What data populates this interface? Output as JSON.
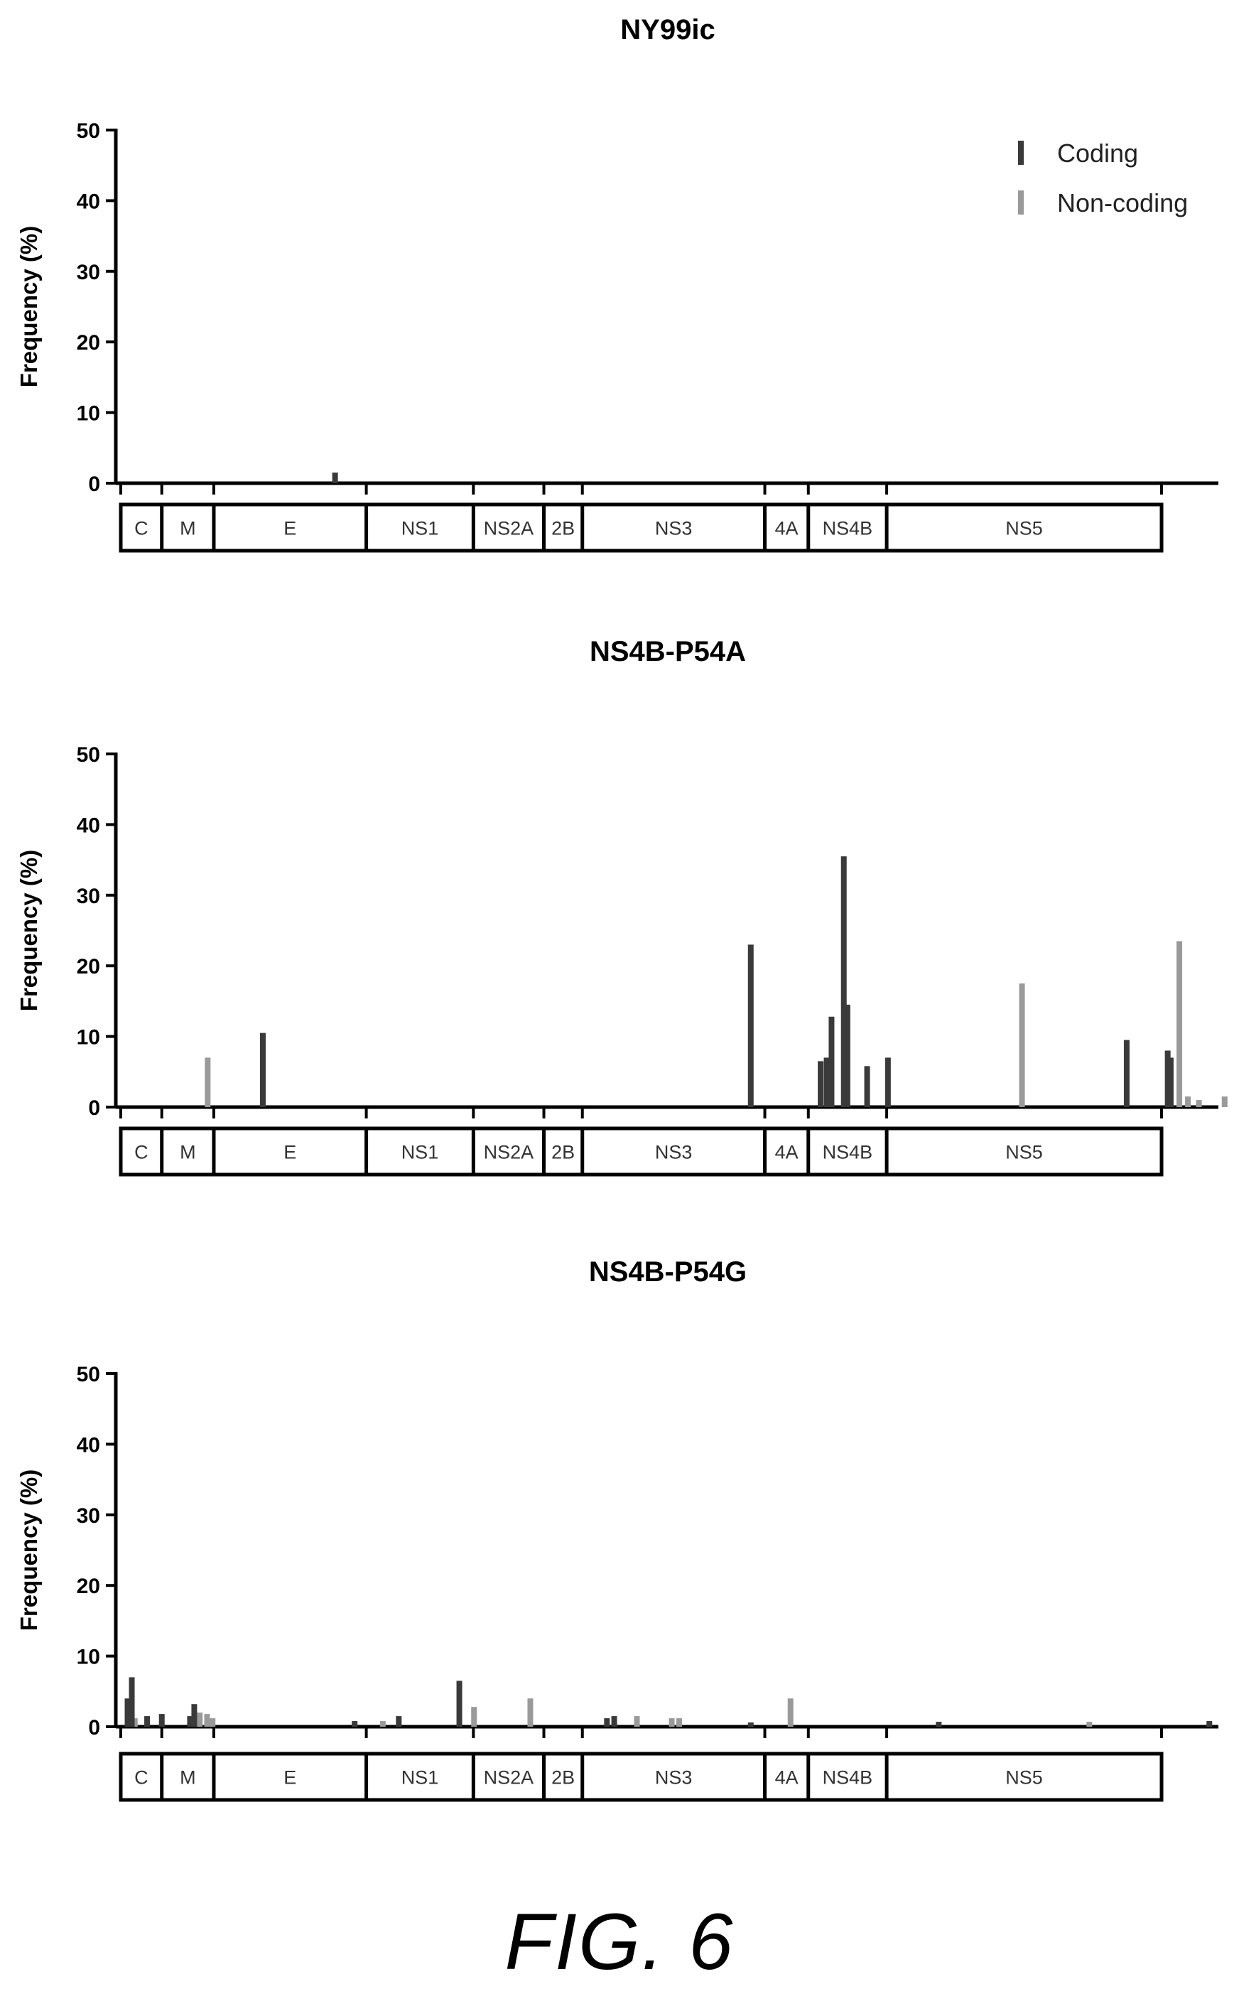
{
  "figure_caption": "FIG. 6",
  "colors": {
    "coding": "#3a3a3a",
    "noncoding": "#9a9a9a",
    "axis": "#000000"
  },
  "legend": {
    "coding": "Coding",
    "noncoding": "Non-coding",
    "placement": "top-right"
  },
  "segments": [
    {
      "label": "C",
      "start": 0.0,
      "end": 0.0394
    },
    {
      "label": "M",
      "start": 0.0394,
      "end": 0.0894
    },
    {
      "label": "E",
      "start": 0.0894,
      "end": 0.2359
    },
    {
      "label": "NS1",
      "start": 0.2359,
      "end": 0.3388
    },
    {
      "label": "NS2A",
      "start": 0.3388,
      "end": 0.4065
    },
    {
      "label": "2B",
      "start": 0.4065,
      "end": 0.4435
    },
    {
      "label": "NS3",
      "start": 0.4435,
      "end": 0.6188
    },
    {
      "label": "4A",
      "start": 0.6188,
      "end": 0.6606
    },
    {
      "label": "NS4B",
      "start": 0.6606,
      "end": 0.7359
    },
    {
      "label": "NS5",
      "start": 0.7359,
      "end": 1.0
    }
  ],
  "chart_data": [
    {
      "type": "bar",
      "title": "NY99ic",
      "ylabel": "Frequency (%)",
      "ylim": [
        0,
        50
      ],
      "yticks": [
        0,
        10,
        20,
        30,
        40,
        50
      ],
      "xlim": [
        0,
        1.06
      ],
      "grid": false,
      "series": [
        {
          "name": "Coding",
          "points": [
            [
              0.2059,
              1.5
            ]
          ]
        },
        {
          "name": "Non-coding",
          "points": []
        }
      ]
    },
    {
      "type": "bar",
      "title": "NS4B-P54A",
      "ylabel": "Frequency (%)",
      "ylim": [
        0,
        50
      ],
      "yticks": [
        0,
        10,
        20,
        30,
        40,
        50
      ],
      "xlim": [
        0,
        1.06
      ],
      "grid": false,
      "series": [
        {
          "name": "Coding",
          "points": [
            [
              0.1365,
              10.5
            ],
            [
              0.6053,
              23.0
            ],
            [
              0.6724,
              6.5
            ],
            [
              0.6782,
              7.0
            ],
            [
              0.6829,
              12.8
            ],
            [
              0.6947,
              35.5
            ],
            [
              0.6982,
              14.5
            ],
            [
              0.7171,
              5.8
            ],
            [
              0.7371,
              7.0
            ],
            [
              0.9665,
              9.5
            ],
            [
              1.0059,
              8.0
            ],
            [
              1.0088,
              7.0
            ]
          ]
        },
        {
          "name": "Non-coding",
          "points": [
            [
              0.0835,
              7.0
            ],
            [
              0.8659,
              17.5
            ],
            [
              1.0171,
              23.5
            ],
            [
              1.0253,
              1.5
            ],
            [
              1.0359,
              1.0
            ],
            [
              1.0606,
              1.5
            ]
          ]
        }
      ]
    },
    {
      "type": "bar",
      "title": "NS4B-P54G",
      "ylabel": "Frequency (%)",
      "ylim": [
        0,
        50
      ],
      "yticks": [
        0,
        10,
        20,
        30,
        40,
        50
      ],
      "xlim": [
        0,
        1.06
      ],
      "grid": false,
      "series": [
        {
          "name": "Coding",
          "points": [
            [
              0.0065,
              4.0
            ],
            [
              0.0106,
              7.0
            ],
            [
              0.0253,
              1.5
            ],
            [
              0.0394,
              1.8
            ],
            [
              0.0665,
              1.5
            ],
            [
              0.0706,
              3.2
            ],
            [
              0.2247,
              0.8
            ],
            [
              0.2671,
              1.5
            ],
            [
              0.3253,
              6.5
            ],
            [
              0.4671,
              1.2
            ],
            [
              0.4741,
              1.5
            ],
            [
              0.6053,
              0.6
            ],
            [
              0.7859,
              0.7
            ],
            [
              1.0459,
              0.8
            ]
          ]
        },
        {
          "name": "Non-coding",
          "points": [
            [
              0.0135,
              1.2
            ],
            [
              0.0759,
              2.0
            ],
            [
              0.0829,
              1.8
            ],
            [
              0.0882,
              1.2
            ],
            [
              0.2518,
              0.8
            ],
            [
              0.3394,
              2.8
            ],
            [
              0.3935,
              4.0
            ],
            [
              0.4959,
              1.5
            ],
            [
              0.5294,
              1.2
            ],
            [
              0.5365,
              1.2
            ],
            [
              0.6435,
              4.0
            ],
            [
              0.9306,
              0.7
            ]
          ]
        }
      ]
    }
  ]
}
